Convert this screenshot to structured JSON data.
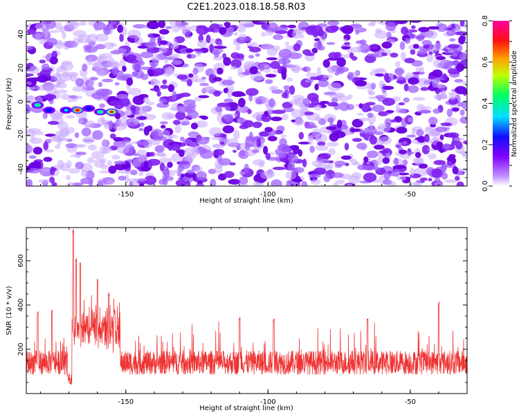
{
  "title": "C2E1.2023.018.18.58.R03",
  "chart_data": [
    {
      "type": "heatmap",
      "xlabel": "Height of straight line (km)",
      "ylabel": "Frequency (Hz)",
      "xlim": [
        -185,
        -30
      ],
      "ylim": [
        -50,
        48
      ],
      "xticks": [
        -150,
        -100,
        -50
      ],
      "yticks": [
        -40,
        -20,
        0,
        20,
        40
      ],
      "colorbar": {
        "label": "Normalized spectral amplitude",
        "range": [
          0,
          0.8
        ],
        "ticks": [
          "0.0",
          "0.2",
          "0.4",
          "0.6",
          "0.8"
        ],
        "colors": [
          "#ffffff",
          "#8000ff",
          "#0000ff",
          "#00ffff",
          "#00ff00",
          "#ffff00",
          "#ff8000",
          "#ff0000",
          "#ff00a0"
        ]
      },
      "signal_track": [
        {
          "x": -181,
          "y": -2,
          "amp": 0.45
        },
        {
          "x": -177,
          "y": -5,
          "amp": 0.3
        },
        {
          "x": -171,
          "y": -5,
          "amp": 0.4
        },
        {
          "x": -167,
          "y": -5,
          "amp": 0.75
        },
        {
          "x": -163,
          "y": -4,
          "amp": 0.3
        },
        {
          "x": -159,
          "y": -6,
          "amp": 0.45
        },
        {
          "x": -155,
          "y": -6,
          "amp": 0.7
        }
      ]
    },
    {
      "type": "line",
      "xlabel": "Height of straight line (km)",
      "ylabel": "SNR (10 * v/v)",
      "xlim": [
        -185,
        -30
      ],
      "ylim": [
        0,
        750
      ],
      "xticks": [
        -150,
        -100,
        -50
      ],
      "yticks": [
        200,
        400,
        600
      ],
      "color": "#ee3333",
      "baseline": 140,
      "peaks": [
        {
          "x": -168.5,
          "y": 745
        },
        {
          "x": -167.5,
          "y": 620
        },
        {
          "x": -166,
          "y": 600
        },
        {
          "x": -160,
          "y": 520
        },
        {
          "x": -156,
          "y": 460
        },
        {
          "x": -154,
          "y": 380
        },
        {
          "x": -176,
          "y": 380
        },
        {
          "x": -181,
          "y": 375
        },
        {
          "x": -40,
          "y": 420
        },
        {
          "x": -110,
          "y": 350
        },
        {
          "x": -98,
          "y": 340
        },
        {
          "x": -65,
          "y": 340
        }
      ]
    }
  ]
}
